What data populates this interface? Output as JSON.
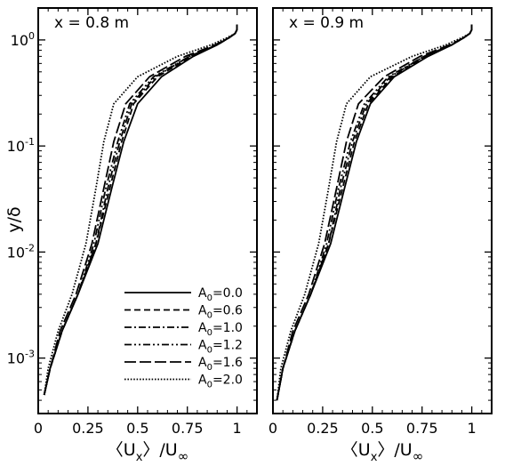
{
  "chart_data": [
    {
      "type": "line",
      "title": "x = 0.8 m",
      "xlabel": "〈U_x〉/U_∞",
      "ylabel": "y/δ",
      "xscale": "linear",
      "yscale": "log",
      "xlim": [
        0,
        1.1
      ],
      "ylim": [
        0.0003,
        2
      ],
      "xticks": [
        "0",
        "0.25",
        "0.5",
        "0.75",
        "1"
      ],
      "yticks": [
        "10^-3",
        "10^-2",
        "10^-1",
        "10^0"
      ],
      "grid": false,
      "legend": "bottom-right",
      "series": [
        {
          "name": "A0=0.0",
          "dash": "solid",
          "x": [
            0.03,
            0.06,
            0.12,
            0.2,
            0.3,
            0.37,
            0.43,
            0.5,
            0.62,
            0.78,
            0.9,
            0.96,
            0.99,
            1.0,
            1.0
          ],
          "y": [
            0.00045,
            0.0008,
            0.0018,
            0.004,
            0.012,
            0.04,
            0.11,
            0.25,
            0.45,
            0.7,
            0.9,
            1.05,
            1.15,
            1.25,
            1.4
          ]
        },
        {
          "name": "A0=0.6",
          "dash": "dashed",
          "x": [
            0.03,
            0.06,
            0.12,
            0.2,
            0.29,
            0.36,
            0.42,
            0.48,
            0.6,
            0.77,
            0.9,
            0.96,
            0.99,
            1.0,
            1.0
          ],
          "y": [
            0.00045,
            0.0008,
            0.0018,
            0.004,
            0.012,
            0.04,
            0.11,
            0.25,
            0.45,
            0.7,
            0.9,
            1.05,
            1.15,
            1.25,
            1.4
          ]
        },
        {
          "name": "A0=1.0",
          "dash": "dash-dot",
          "x": [
            0.03,
            0.06,
            0.12,
            0.2,
            0.29,
            0.35,
            0.41,
            0.47,
            0.59,
            0.76,
            0.9,
            0.96,
            0.99,
            1.0,
            1.0
          ],
          "y": [
            0.00045,
            0.0008,
            0.0018,
            0.004,
            0.012,
            0.04,
            0.11,
            0.25,
            0.45,
            0.7,
            0.9,
            1.05,
            1.15,
            1.25,
            1.4
          ]
        },
        {
          "name": "A0=1.2",
          "dash": "dash-dot-dot",
          "x": [
            0.03,
            0.06,
            0.12,
            0.2,
            0.28,
            0.34,
            0.4,
            0.46,
            0.58,
            0.76,
            0.9,
            0.96,
            0.99,
            1.0,
            1.0
          ],
          "y": [
            0.00045,
            0.0008,
            0.0018,
            0.004,
            0.012,
            0.04,
            0.11,
            0.25,
            0.45,
            0.7,
            0.9,
            1.05,
            1.15,
            1.25,
            1.4
          ]
        },
        {
          "name": "A0=1.6",
          "dash": "long-dash",
          "x": [
            0.03,
            0.06,
            0.11,
            0.19,
            0.27,
            0.33,
            0.38,
            0.44,
            0.56,
            0.74,
            0.89,
            0.96,
            0.99,
            1.0,
            1.0
          ],
          "y": [
            0.00045,
            0.0008,
            0.0018,
            0.004,
            0.012,
            0.04,
            0.11,
            0.25,
            0.45,
            0.7,
            0.9,
            1.05,
            1.15,
            1.25,
            1.4
          ]
        },
        {
          "name": "A0=2.0",
          "dash": "dotted",
          "x": [
            0.03,
            0.05,
            0.1,
            0.17,
            0.24,
            0.29,
            0.33,
            0.38,
            0.5,
            0.7,
            0.87,
            0.95,
            0.99,
            1.0,
            1.0
          ],
          "y": [
            0.00045,
            0.0008,
            0.0018,
            0.004,
            0.012,
            0.04,
            0.11,
            0.25,
            0.45,
            0.7,
            0.9,
            1.05,
            1.15,
            1.25,
            1.4
          ]
        }
      ]
    },
    {
      "type": "line",
      "title": "x = 0.9 m",
      "xlabel": "〈U_x〉/U_∞",
      "ylabel": "",
      "xscale": "linear",
      "yscale": "log",
      "xlim": [
        0,
        1.1
      ],
      "ylim": [
        0.0003,
        2
      ],
      "xticks": [
        "0",
        "0.25",
        "0.5",
        "0.75",
        "1"
      ],
      "yticks": [],
      "grid": false,
      "legend": "none",
      "series": [
        {
          "name": "A0=0.0",
          "dash": "solid",
          "x": [
            0.02,
            0.05,
            0.11,
            0.19,
            0.29,
            0.36,
            0.42,
            0.49,
            0.61,
            0.78,
            0.9,
            0.96,
            0.99,
            1.0,
            1.0
          ],
          "y": [
            0.0004,
            0.0008,
            0.0018,
            0.004,
            0.012,
            0.04,
            0.11,
            0.25,
            0.45,
            0.7,
            0.9,
            1.05,
            1.15,
            1.25,
            1.4
          ]
        },
        {
          "name": "A0=0.6",
          "dash": "dashed",
          "x": [
            0.02,
            0.05,
            0.11,
            0.19,
            0.28,
            0.35,
            0.41,
            0.48,
            0.6,
            0.77,
            0.9,
            0.96,
            0.99,
            1.0,
            1.0
          ],
          "y": [
            0.0004,
            0.0008,
            0.0018,
            0.004,
            0.012,
            0.04,
            0.11,
            0.25,
            0.45,
            0.7,
            0.9,
            1.05,
            1.15,
            1.25,
            1.4
          ]
        },
        {
          "name": "A0=1.0",
          "dash": "dash-dot",
          "x": [
            0.02,
            0.05,
            0.11,
            0.19,
            0.28,
            0.34,
            0.4,
            0.47,
            0.59,
            0.76,
            0.9,
            0.96,
            0.99,
            1.0,
            1.0
          ],
          "y": [
            0.0004,
            0.0008,
            0.0018,
            0.004,
            0.012,
            0.04,
            0.11,
            0.25,
            0.45,
            0.7,
            0.9,
            1.05,
            1.15,
            1.25,
            1.4
          ]
        },
        {
          "name": "A0=1.2",
          "dash": "dash-dot-dot",
          "x": [
            0.02,
            0.05,
            0.11,
            0.19,
            0.27,
            0.33,
            0.39,
            0.46,
            0.58,
            0.76,
            0.9,
            0.96,
            0.99,
            1.0,
            1.0
          ],
          "y": [
            0.0004,
            0.0008,
            0.0018,
            0.004,
            0.012,
            0.04,
            0.11,
            0.25,
            0.45,
            0.7,
            0.9,
            1.05,
            1.15,
            1.25,
            1.4
          ]
        },
        {
          "name": "A0=1.6",
          "dash": "long-dash",
          "x": [
            0.02,
            0.05,
            0.1,
            0.18,
            0.26,
            0.32,
            0.37,
            0.43,
            0.56,
            0.74,
            0.89,
            0.96,
            0.99,
            1.0,
            1.0
          ],
          "y": [
            0.0004,
            0.0008,
            0.0018,
            0.004,
            0.012,
            0.04,
            0.11,
            0.25,
            0.45,
            0.7,
            0.9,
            1.05,
            1.15,
            1.25,
            1.4
          ]
        },
        {
          "name": "A0=2.0",
          "dash": "dotted",
          "x": [
            0.02,
            0.04,
            0.09,
            0.16,
            0.23,
            0.28,
            0.32,
            0.37,
            0.49,
            0.7,
            0.87,
            0.95,
            0.99,
            1.0,
            1.0
          ],
          "y": [
            0.0004,
            0.0008,
            0.0018,
            0.004,
            0.012,
            0.04,
            0.11,
            0.25,
            0.45,
            0.7,
            0.9,
            1.05,
            1.15,
            1.25,
            1.4
          ]
        }
      ]
    }
  ]
}
